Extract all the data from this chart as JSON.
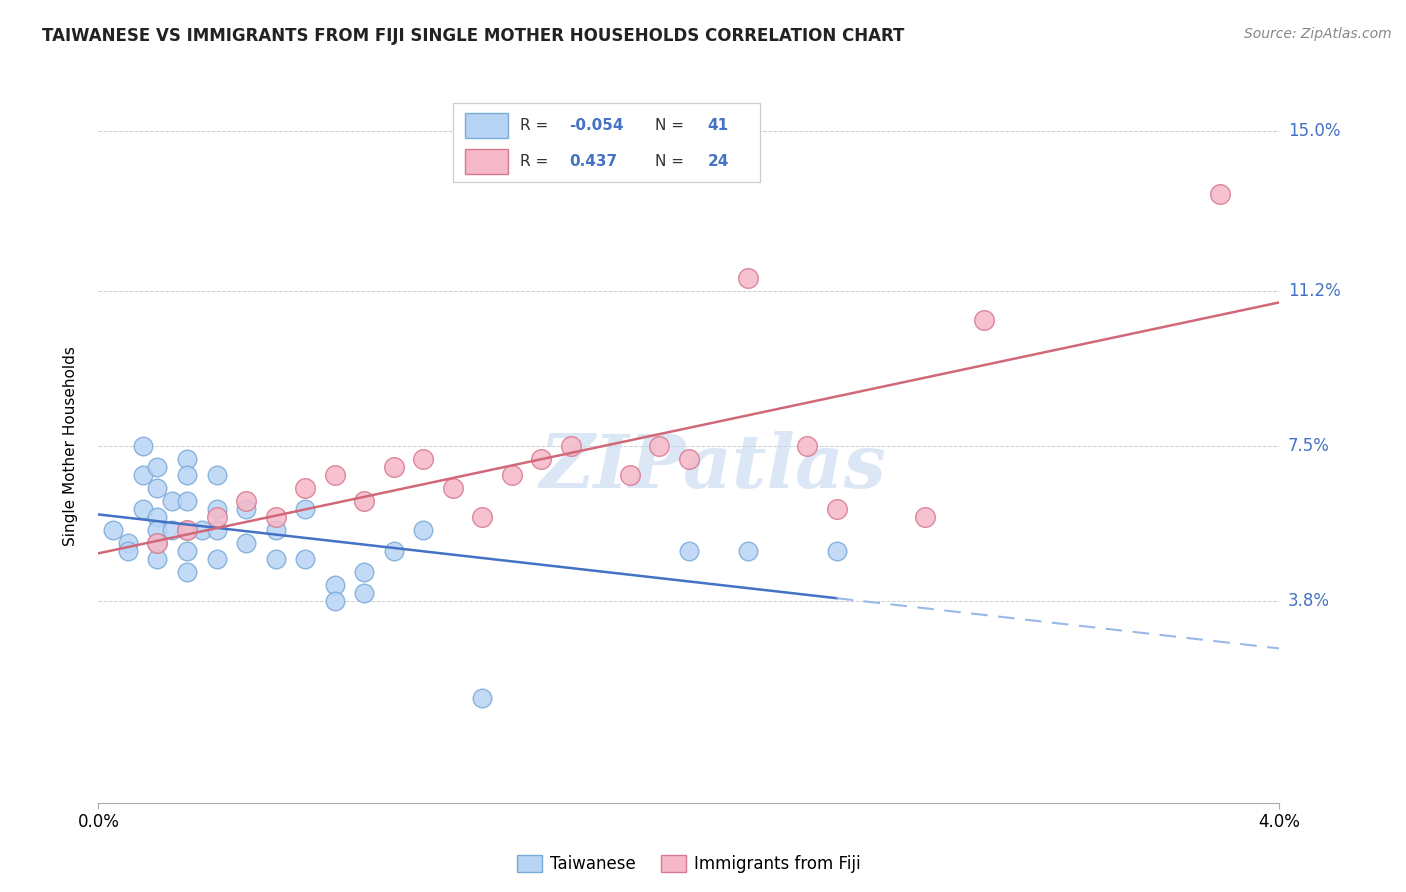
{
  "title": "TAIWANESE VS IMMIGRANTS FROM FIJI SINGLE MOTHER HOUSEHOLDS CORRELATION CHART",
  "source": "Source: ZipAtlas.com",
  "ylabel": "Single Mother Households",
  "x_min": 0.0,
  "x_max": 0.04,
  "y_min": -0.01,
  "y_max": 0.16,
  "y_ticks": [
    0.038,
    0.075,
    0.112,
    0.15
  ],
  "y_tick_labels": [
    "3.8%",
    "7.5%",
    "11.2%",
    "15.0%"
  ],
  "x_ticks": [
    0.0,
    0.04
  ],
  "x_tick_labels": [
    "0.0%",
    "4.0%"
  ],
  "R_taiwanese": -0.054,
  "N_taiwanese": 41,
  "R_fiji": 0.437,
  "N_fiji": 24,
  "color_taiwanese_fill": "#B8D4F5",
  "color_taiwanese_edge": "#7AAAD8",
  "color_fiji_fill": "#F5B8C8",
  "color_fiji_edge": "#D87890",
  "color_trend_taiwanese_solid": "#4472C4",
  "color_trend_taiwanese_dash": "#9AB8E8",
  "color_trend_fiji": "#D06878",
  "watermark": "ZIPatlas",
  "taiwanese_x": [
    0.0005,
    0.001,
    0.001,
    0.0015,
    0.0015,
    0.0015,
    0.002,
    0.002,
    0.002,
    0.002,
    0.002,
    0.002,
    0.0025,
    0.0025,
    0.003,
    0.003,
    0.003,
    0.003,
    0.003,
    0.003,
    0.0035,
    0.004,
    0.004,
    0.004,
    0.004,
    0.005,
    0.005,
    0.006,
    0.006,
    0.007,
    0.007,
    0.008,
    0.008,
    0.009,
    0.009,
    0.01,
    0.011,
    0.013,
    0.02,
    0.022,
    0.025
  ],
  "taiwanese_y": [
    0.055,
    0.052,
    0.05,
    0.075,
    0.068,
    0.06,
    0.07,
    0.065,
    0.058,
    0.055,
    0.052,
    0.048,
    0.062,
    0.055,
    0.072,
    0.068,
    0.062,
    0.055,
    0.05,
    0.045,
    0.055,
    0.068,
    0.06,
    0.055,
    0.048,
    0.06,
    0.052,
    0.055,
    0.048,
    0.06,
    0.048,
    0.042,
    0.038,
    0.045,
    0.04,
    0.05,
    0.055,
    0.015,
    0.05,
    0.05,
    0.05
  ],
  "fiji_x": [
    0.002,
    0.003,
    0.004,
    0.005,
    0.006,
    0.007,
    0.008,
    0.009,
    0.01,
    0.011,
    0.012,
    0.013,
    0.014,
    0.015,
    0.016,
    0.018,
    0.019,
    0.02,
    0.022,
    0.024,
    0.025,
    0.028,
    0.03,
    0.038
  ],
  "fiji_y": [
    0.052,
    0.055,
    0.058,
    0.062,
    0.058,
    0.065,
    0.068,
    0.062,
    0.07,
    0.072,
    0.065,
    0.058,
    0.068,
    0.072,
    0.075,
    0.068,
    0.075,
    0.072,
    0.115,
    0.075,
    0.06,
    0.058,
    0.105,
    0.135
  ]
}
